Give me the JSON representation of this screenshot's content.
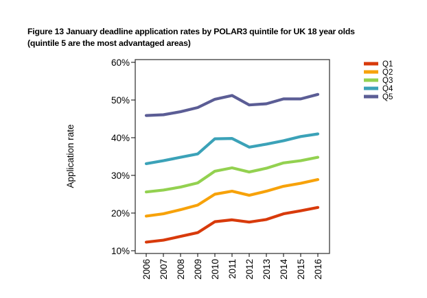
{
  "chart_data": {
    "type": "line",
    "title": "Figure 13 January deadline application rates by POLAR3 quintile for UK 18 year olds",
    "subtitle": "(quintile 5 are the most advantaged areas)",
    "xlabel": "",
    "ylabel": "Application rate",
    "x": [
      "2006",
      "2007",
      "2008",
      "2009",
      "2010",
      "2011",
      "2012",
      "2013",
      "2014",
      "2015",
      "2016"
    ],
    "ylim": [
      10,
      60
    ],
    "yticks": [
      10,
      20,
      30,
      40,
      50,
      60
    ],
    "ytick_labels": [
      "10%",
      "20%",
      "30%",
      "40%",
      "50%",
      "60%"
    ],
    "y_unit": "percent",
    "grid": false,
    "legend_position": "top-right",
    "series": [
      {
        "name": "Q1",
        "color": "#d83a0b",
        "values": [
          12.3,
          12.8,
          13.8,
          14.8,
          17.7,
          18.2,
          17.6,
          18.3,
          19.8,
          20.6,
          21.5
        ]
      },
      {
        "name": "Q2",
        "color": "#f7a20a",
        "values": [
          19.2,
          19.8,
          20.9,
          22.1,
          25.0,
          25.8,
          24.7,
          25.8,
          27.1,
          27.9,
          28.9
        ]
      },
      {
        "name": "Q3",
        "color": "#93d150",
        "values": [
          25.6,
          26.1,
          26.9,
          28.0,
          31.1,
          32.0,
          30.9,
          31.9,
          33.3,
          33.9,
          34.8
        ]
      },
      {
        "name": "Q4",
        "color": "#3ba2b8",
        "values": [
          33.1,
          33.9,
          34.8,
          35.7,
          39.7,
          39.8,
          37.5,
          38.3,
          39.2,
          40.3,
          41.0
        ]
      },
      {
        "name": "Q5",
        "color": "#5b5d95",
        "values": [
          45.9,
          46.1,
          46.9,
          48.0,
          50.2,
          51.2,
          48.7,
          49.0,
          50.3,
          50.3,
          51.5
        ]
      }
    ]
  }
}
